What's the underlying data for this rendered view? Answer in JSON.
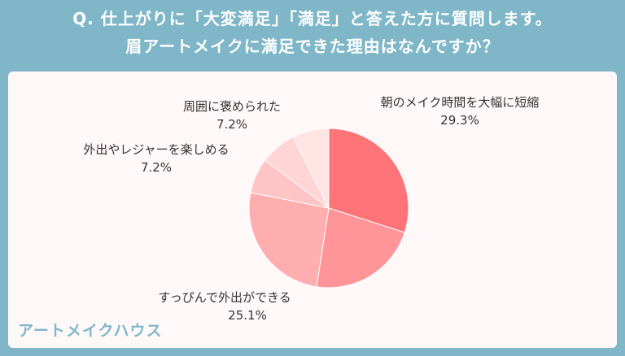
{
  "header": {
    "line1": "Q. 仕上がりに「大変満足」「満足」と答えた方に質問します。",
    "line2": "眉アートメイクに満足できた理由はなんですか？"
  },
  "brand": "アートメイクハウス",
  "chart_data": {
    "type": "pie",
    "start": "12 o'clock",
    "direction": "clockwise",
    "slices": [
      {
        "label": "朝のメイク時間を大幅に短縮",
        "value": 29.3,
        "value_label": "29.3%",
        "color": "#ff7478"
      },
      {
        "label": "",
        "value": 22.0,
        "value_label": "",
        "color": "#ff9599"
      },
      {
        "label": "すっぴんで外出ができる",
        "value": 25.1,
        "value_label": "25.1%",
        "color": "#ffaeb0"
      },
      {
        "label": "",
        "value": 7.0,
        "value_label": "",
        "color": "#ffc4c5"
      },
      {
        "label": "外出やレジャーを楽しめる",
        "value": 7.2,
        "value_label": "7.2%",
        "color": "#ffd5d6"
      },
      {
        "label": "周囲に褒められた",
        "value": 7.2,
        "value_label": "7.2%",
        "color": "#ffe4e4"
      }
    ]
  }
}
